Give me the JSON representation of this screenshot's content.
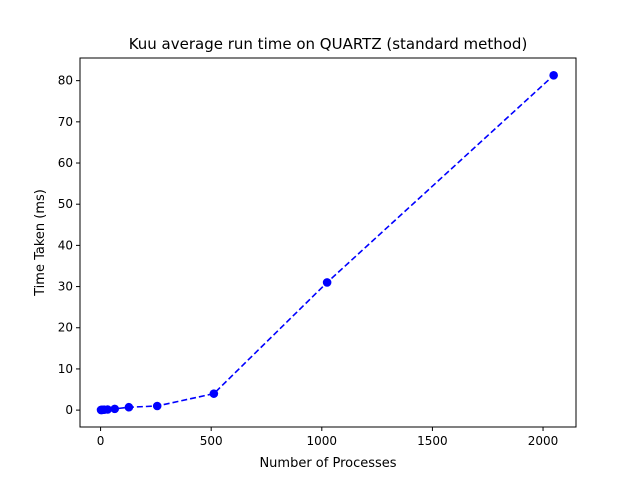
{
  "chart_data": {
    "type": "line",
    "title": "Kuu average run time on QUARTZ (standard method)",
    "xlabel": "Number of Processes",
    "ylabel": "Time Taken (ms)",
    "xlim": [
      -93,
      2149
    ],
    "ylim": [
      -4.1,
      85.5
    ],
    "xticks": [
      0,
      500,
      1000,
      1500,
      2000
    ],
    "yticks": [
      0,
      10,
      20,
      30,
      40,
      50,
      60,
      70,
      80
    ],
    "grid": false,
    "legend": "none",
    "series": [
      {
        "x": [
          2,
          4,
          8,
          16,
          32,
          64,
          128,
          256,
          512,
          1024,
          2048
        ],
        "y": [
          0.05,
          0.05,
          0.07,
          0.1,
          0.15,
          0.3,
          0.7,
          1.0,
          4.0,
          31.0,
          81.3
        ],
        "color": "#0000ff",
        "linestyle": "dashed",
        "marker": "circle"
      }
    ]
  }
}
